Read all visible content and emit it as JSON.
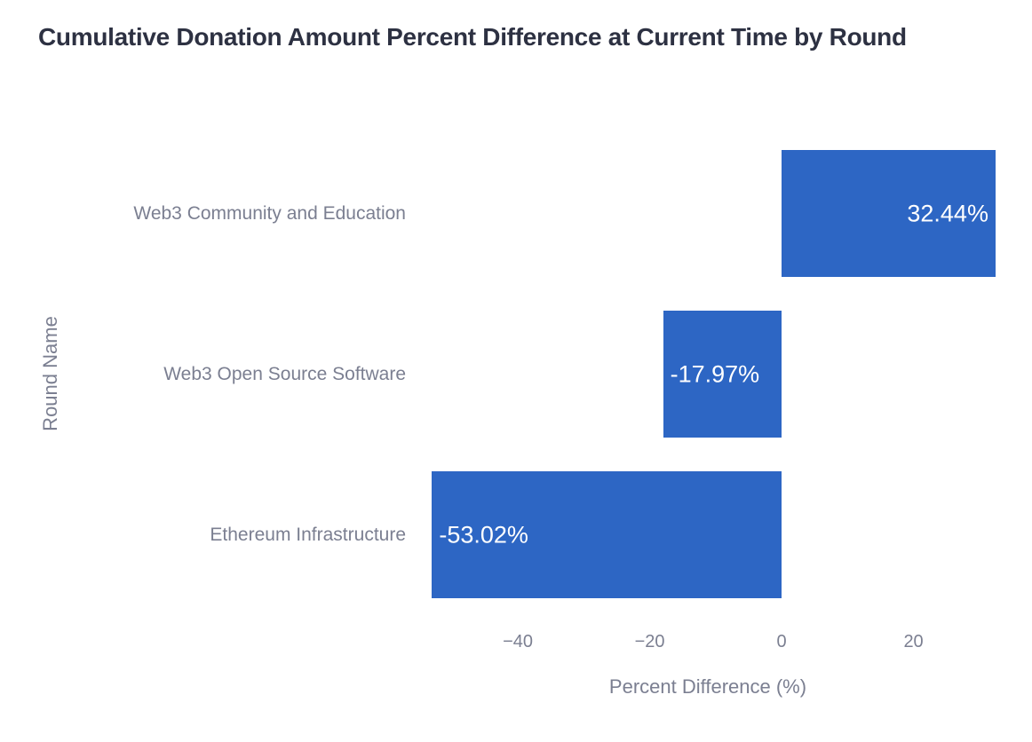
{
  "title": "Cumulative Donation Amount Percent Difference at Current Time by Round",
  "colors": {
    "bar": "#2d66c4",
    "bar_label_text": "#ffffff",
    "axis_text": "#7b7f91",
    "title_text": "#2d3142",
    "background": "#ffffff"
  },
  "chart_data": {
    "type": "bar",
    "orientation": "horizontal",
    "title": "Cumulative Donation Amount Percent Difference at Current Time by Round",
    "xlabel": "Percent Difference (%)",
    "ylabel": "Round Name",
    "categories": [
      "Web3 Community and Education",
      "Web3 Open Source Software",
      "Ethereum Infrastructure"
    ],
    "values": [
      32.44,
      -17.97,
      -53.02
    ],
    "bar_labels": [
      "32.44%",
      "-17.97%",
      "-53.02%"
    ],
    "bar_label_position": "inside-end",
    "xlim": [
      -56.03,
      33.66
    ],
    "xticks": [
      -40,
      -20,
      0,
      20
    ],
    "xtick_labels": [
      "−40",
      "−20",
      "0",
      "20"
    ],
    "grid": false,
    "legend": null
  }
}
